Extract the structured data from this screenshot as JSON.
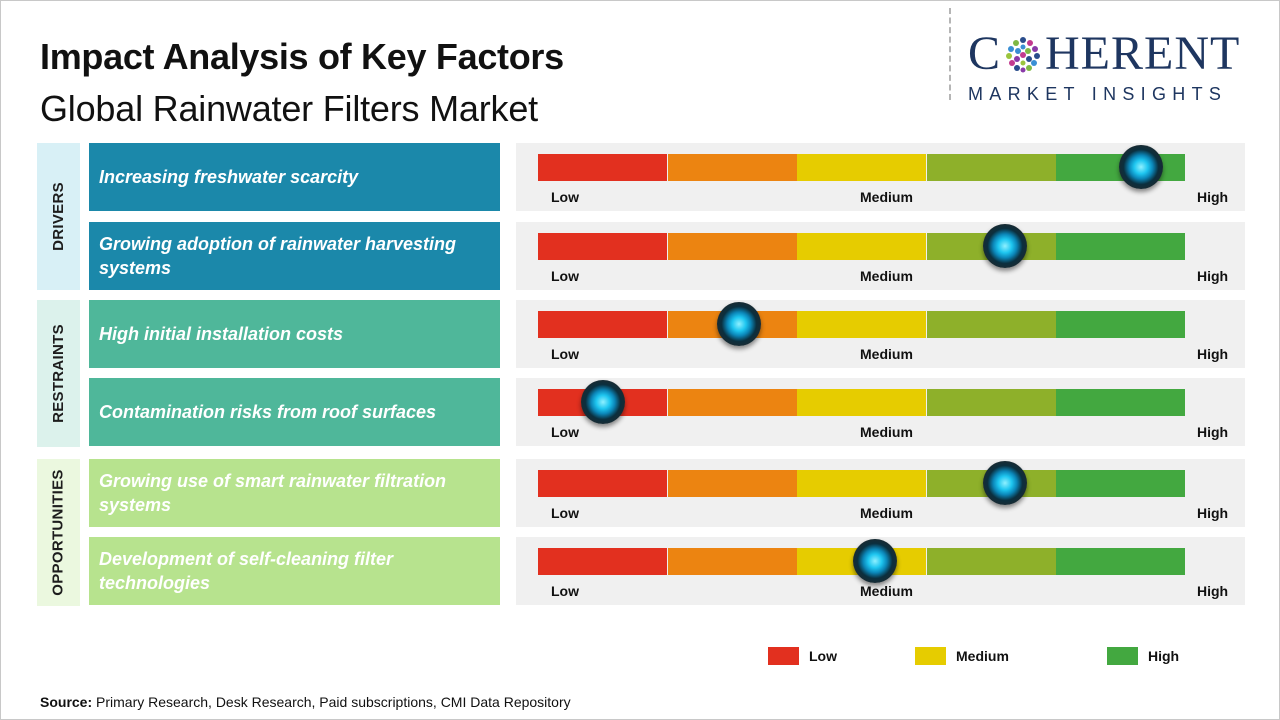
{
  "title": "Impact Analysis of Key Factors",
  "subtitle": "Global Rainwater Filters Market",
  "logo": {
    "line1_left": "C",
    "line1_right": "HERENT",
    "line2": "MARKET INSIGHTS"
  },
  "colors": {
    "segments": [
      "#e2301f",
      "#ec8411",
      "#e6cc00",
      "#8eb02a",
      "#43a840"
    ],
    "drivers_bg": "#1b88aa",
    "drivers_cat_bg": "#d8f0f6",
    "restraints_bg": "#4fb79a",
    "restraints_cat_bg": "#dcf2ec",
    "opportunities_bg": "#b7e38e",
    "opportunities_cat_bg": "#ebf8df"
  },
  "categories": [
    {
      "label": "DRIVERS"
    },
    {
      "label": "RESTRAINTS"
    },
    {
      "label": "OPPORTUNITIES"
    }
  ],
  "scale_labels": {
    "low": "Low",
    "medium": "Medium",
    "high": "High"
  },
  "legend": [
    {
      "label": "Low",
      "color": "#e2301f"
    },
    {
      "label": "Medium",
      "color": "#e6cc00"
    },
    {
      "label": "High",
      "color": "#43a840"
    }
  ],
  "source": {
    "label": "Source:",
    "text": " Primary Research, Desk Research, Paid subscriptions, CMI Data Repository"
  },
  "chart_data": {
    "type": "table",
    "scale": [
      "Low",
      "Medium",
      "High"
    ],
    "value_range": [
      0,
      1
    ],
    "rows": [
      {
        "category": "DRIVERS",
        "factor": "Increasing freshwater scarcity",
        "impact": 0.93
      },
      {
        "category": "DRIVERS",
        "factor": "Growing adoption of rainwater harvesting systems",
        "impact": 0.72
      },
      {
        "category": "RESTRAINTS",
        "factor": "High initial installation costs",
        "impact": 0.31
      },
      {
        "category": "RESTRAINTS",
        "factor": "Contamination risks from roof surfaces",
        "impact": 0.1
      },
      {
        "category": "OPPORTUNITIES",
        "factor": "Growing use of smart rainwater filtration systems",
        "impact": 0.72
      },
      {
        "category": "OPPORTUNITIES",
        "factor": "Development of self-cleaning filter technologies",
        "impact": 0.52
      }
    ]
  }
}
